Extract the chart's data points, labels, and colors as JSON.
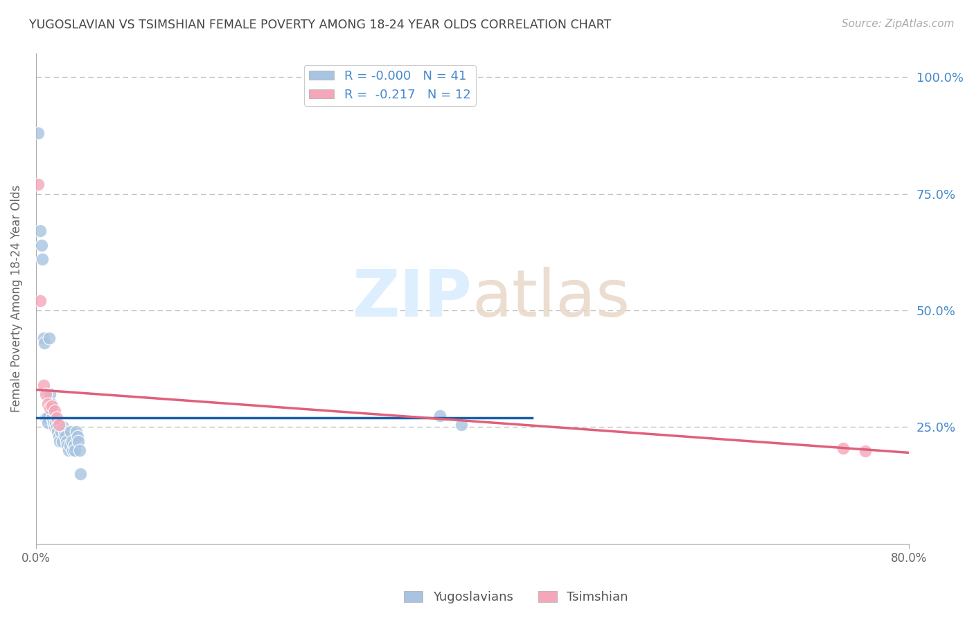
{
  "title": "YUGOSLAVIAN VS TSIMSHIAN FEMALE POVERTY AMONG 18-24 YEAR OLDS CORRELATION CHART",
  "source": "Source: ZipAtlas.com",
  "ylabel": "Female Poverty Among 18-24 Year Olds",
  "xlim": [
    0.0,
    0.8
  ],
  "ylim": [
    0.0,
    1.0
  ],
  "yugo_color": "#a8c4e0",
  "tsim_color": "#f4a7b9",
  "yugo_line_color": "#1a5fa8",
  "tsim_line_color": "#e0607a",
  "background_color": "#ffffff",
  "grid_color": "#bbbbbb",
  "right_label_color": "#4488cc",
  "title_color": "#444444",
  "watermark_color": "#ddeeff",
  "legend_R_yugo": "-0.000",
  "legend_N_yugo": "41",
  "legend_R_tsim": "-0.217",
  "legend_N_tsim": "12",
  "yugo_line_x": [
    0.0,
    0.455
  ],
  "yugo_line_y": [
    0.27,
    0.27
  ],
  "tsim_line_x": [
    0.0,
    0.8
  ],
  "tsim_line_y": [
    0.33,
    0.195
  ],
  "yugo_x": [
    0.002,
    0.004,
    0.005,
    0.006,
    0.007,
    0.008,
    0.009,
    0.01,
    0.011,
    0.012,
    0.013,
    0.014,
    0.015,
    0.016,
    0.017,
    0.018,
    0.019,
    0.02,
    0.021,
    0.022,
    0.023,
    0.024,
    0.025,
    0.026,
    0.027,
    0.028,
    0.029,
    0.03,
    0.031,
    0.032,
    0.033,
    0.034,
    0.035,
    0.036,
    0.037,
    0.038,
    0.039,
    0.04,
    0.041,
    0.37,
    0.39
  ],
  "yugo_y": [
    0.88,
    0.67,
    0.64,
    0.61,
    0.44,
    0.43,
    0.27,
    0.27,
    0.26,
    0.44,
    0.32,
    0.3,
    0.27,
    0.26,
    0.25,
    0.26,
    0.25,
    0.24,
    0.23,
    0.22,
    0.24,
    0.22,
    0.25,
    0.24,
    0.23,
    0.22,
    0.21,
    0.2,
    0.21,
    0.24,
    0.22,
    0.2,
    0.21,
    0.2,
    0.24,
    0.23,
    0.22,
    0.2,
    0.15,
    0.275,
    0.255
  ],
  "tsim_x": [
    0.002,
    0.004,
    0.007,
    0.009,
    0.011,
    0.013,
    0.015,
    0.017,
    0.019,
    0.021,
    0.74,
    0.76
  ],
  "tsim_y": [
    0.77,
    0.52,
    0.34,
    0.32,
    0.3,
    0.29,
    0.295,
    0.285,
    0.27,
    0.255,
    0.205,
    0.198
  ]
}
